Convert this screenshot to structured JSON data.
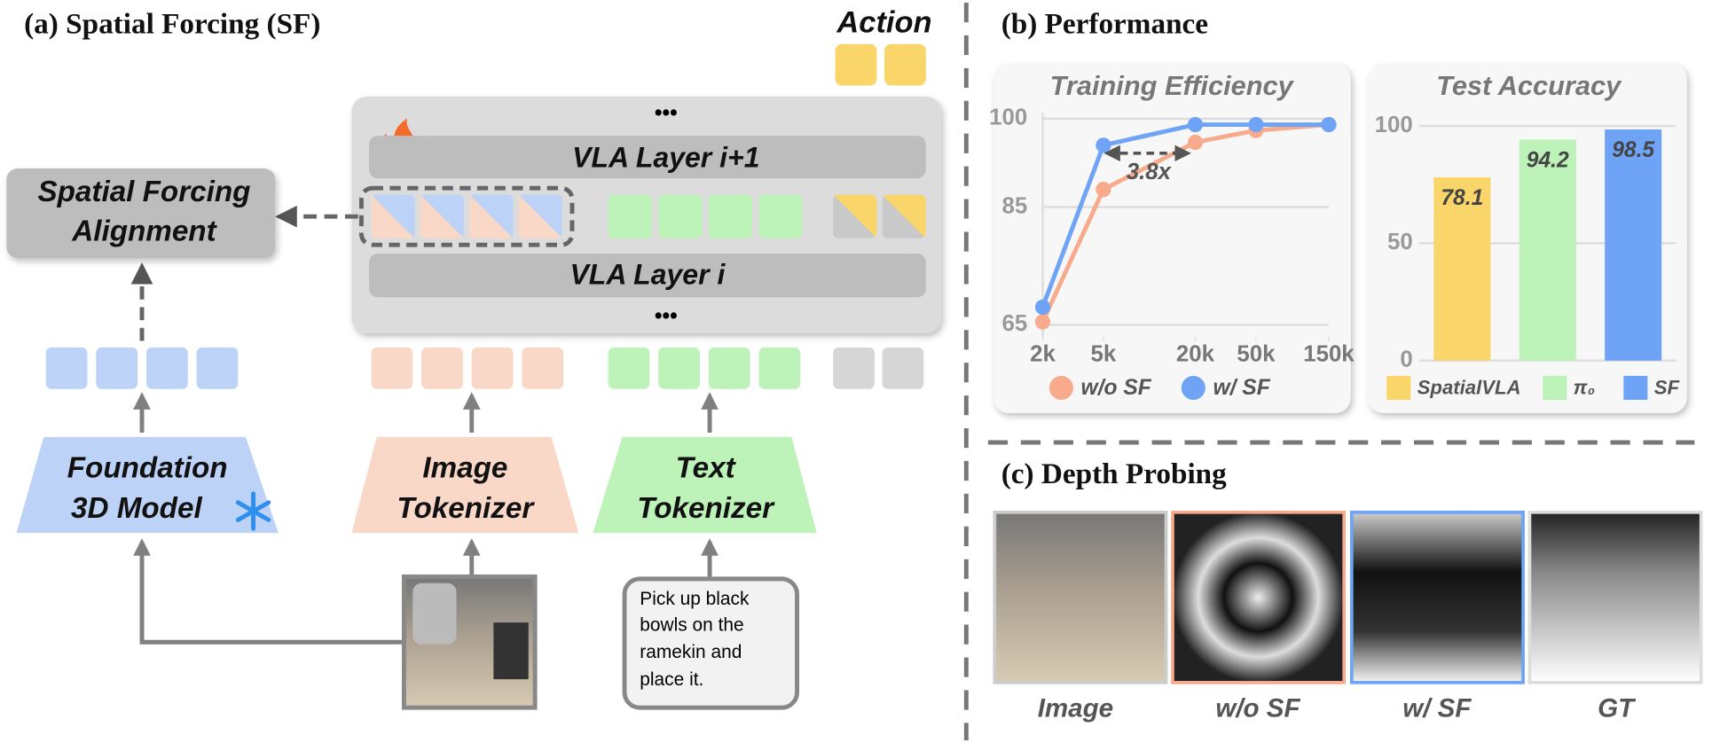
{
  "panel_a": {
    "title": "(a) Spatial Forcing (SF)",
    "action": "Action",
    "ellipsis": "•••",
    "layer_top": "VLA Layer i+1",
    "layer_bottom": "VLA Layer i",
    "alignment": [
      "Spatial Forcing",
      "Alignment"
    ],
    "foundation": [
      "Foundation",
      "3D Model"
    ],
    "image_tokenizer": [
      "Image",
      "Tokenizer"
    ],
    "text_tokenizer": [
      "Text",
      "Tokenizer"
    ],
    "instruction": [
      "Pick up black",
      "bowls on the",
      "ramekin and",
      "place it."
    ]
  },
  "panel_b": {
    "title": "(b) Performance"
  },
  "chart_data": [
    {
      "type": "line",
      "title": "Training Efficiency",
      "x": [
        2000,
        5000,
        20000,
        50000,
        150000
      ],
      "xlim": [
        2000,
        150000
      ],
      "xscale": "log",
      "xticks": [
        {
          "value": 2000,
          "label": "2k"
        },
        {
          "value": 5000,
          "label": "5k"
        },
        {
          "value": 20000,
          "label": "20k"
        },
        {
          "value": 50000,
          "label": "50k"
        },
        {
          "value": 150000,
          "label": "150k"
        }
      ],
      "ylim": [
        63,
        101
      ],
      "yticks": [
        65,
        85,
        100
      ],
      "grid": true,
      "annotation": "3.8x",
      "series": [
        {
          "name": "w/o SF",
          "color": "#f7ab8c",
          "values": [
            65.5,
            88,
            96,
            98,
            99
          ]
        },
        {
          "name": "w/ SF",
          "color": "#6fa3f5",
          "values": [
            68,
            95.5,
            99,
            99,
            99
          ]
        }
      ]
    },
    {
      "type": "bar",
      "title": "Test Accuracy",
      "categories": [
        "SpatialVLA",
        "π₀",
        "SF"
      ],
      "values": [
        78.1,
        94.2,
        98.5
      ],
      "colors": [
        "#fad66a",
        "#bdf2b8",
        "#6fa3f5"
      ],
      "ylim": [
        0,
        100
      ],
      "yticks": [
        0,
        50,
        100
      ],
      "grid": true
    }
  ],
  "panel_c": {
    "title": "(c) Depth Probing",
    "labels": [
      "Image",
      "w/o SF",
      "w/ SF",
      "GT"
    ]
  }
}
